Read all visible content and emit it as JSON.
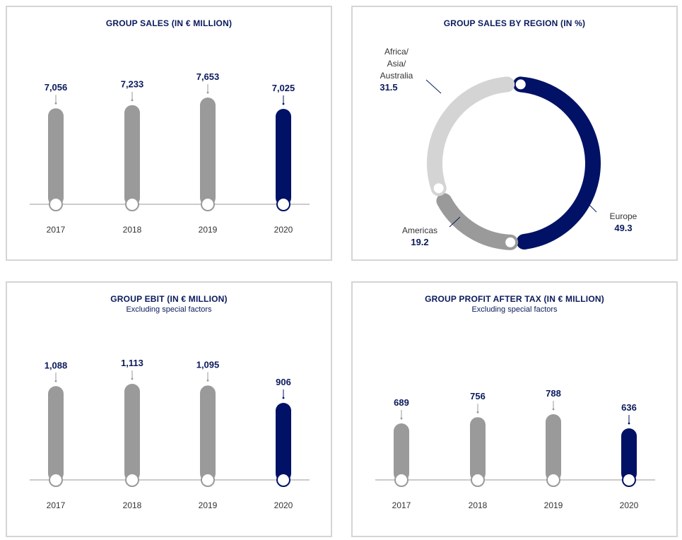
{
  "colors": {
    "highlight": "#001166",
    "past": "#9a9a9a",
    "light": "#d4d4d4",
    "text": "#0a1a5c"
  },
  "chart_data": [
    {
      "id": "sales",
      "type": "bar",
      "title": "GROUP SALES (IN € MILLION)",
      "subtitle": "",
      "categories": [
        "2017",
        "2018",
        "2019",
        "2020"
      ],
      "values": [
        7056,
        7233,
        7653,
        7025
      ],
      "value_labels": [
        "7,056",
        "7,233",
        "7,653",
        "7,025"
      ],
      "highlight_index": 3
    },
    {
      "id": "region",
      "type": "pie",
      "title": "GROUP SALES BY REGION (IN %)",
      "slices": [
        {
          "label": "Europe",
          "value": 49.3,
          "value_label": "49.3",
          "color": "#001166"
        },
        {
          "label": "Americas",
          "value": 19.2,
          "value_label": "19.2",
          "color": "#9a9a9a"
        },
        {
          "label": "Africa/ Asia/ Australia",
          "lines": [
            "Africa/",
            "Asia/",
            "Australia"
          ],
          "value": 31.5,
          "value_label": "31.5",
          "color": "#d4d4d4"
        }
      ]
    },
    {
      "id": "ebit",
      "type": "bar",
      "title": "GROUP EBIT (IN € MILLION)",
      "subtitle": "Excluding special factors",
      "categories": [
        "2017",
        "2018",
        "2019",
        "2020"
      ],
      "values": [
        1088,
        1113,
        1095,
        906
      ],
      "value_labels": [
        "1,088",
        "1,113",
        "1,095",
        "906"
      ],
      "highlight_index": 3
    },
    {
      "id": "profit",
      "type": "bar",
      "title": "GROUP PROFIT AFTER TAX (IN € MILLION)",
      "subtitle": "Excluding special factors",
      "categories": [
        "2017",
        "2018",
        "2019",
        "2020"
      ],
      "values": [
        689,
        756,
        788,
        636
      ],
      "value_labels": [
        "689",
        "756",
        "788",
        "636"
      ],
      "highlight_index": 3
    }
  ]
}
